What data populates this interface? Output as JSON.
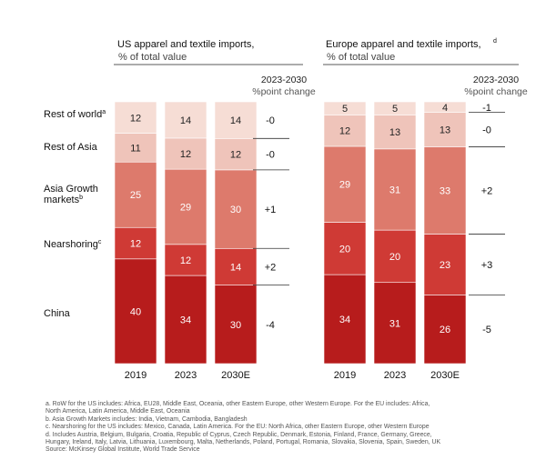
{
  "colors": {
    "china": "#b71c1c",
    "nearshoring": "#cf3a35",
    "asia_growth": "#dd7a6c",
    "rest_of_asia": "#efc4ba",
    "rest_of_world": "#f6ddd5",
    "text_on_dark": "#ffffff",
    "text_on_light": "#222222"
  },
  "chart_data": [
    {
      "type": "bar",
      "stacked": true,
      "title": "US apparel and textile imports,",
      "subtitle": "% of total value",
      "change_header": [
        "2023-2030",
        "%point change"
      ],
      "categories": [
        "2019",
        "2023",
        "2030E"
      ],
      "series": [
        {
          "name": "China",
          "values": [
            40,
            34,
            30
          ],
          "change": "-4"
        },
        {
          "name": "Nearshoring",
          "values": [
            12,
            12,
            14
          ],
          "change": "+2"
        },
        {
          "name": "Asia Growth markets",
          "values": [
            25,
            29,
            30
          ],
          "change": "+1"
        },
        {
          "name": "Rest of Asia",
          "values": [
            11,
            12,
            12
          ],
          "change": "-0"
        },
        {
          "name": "Rest of world",
          "values": [
            12,
            14,
            14
          ],
          "change": "-0"
        }
      ],
      "series_labels": [
        {
          "text": "China",
          "sup": ""
        },
        {
          "text": "Nearshoring",
          "sup": "c"
        },
        {
          "text": "Asia Growth markets",
          "sup": "b"
        },
        {
          "text": "Rest of Asia",
          "sup": ""
        },
        {
          "text": "Rest of world",
          "sup": "a"
        }
      ]
    },
    {
      "type": "bar",
      "stacked": true,
      "title": "Europe apparel and textile imports,",
      "title_sup": "d",
      "subtitle": "% of total value",
      "change_header": [
        "2023-2030",
        "%point change"
      ],
      "categories": [
        "2019",
        "2023",
        "2030E"
      ],
      "series": [
        {
          "name": "China",
          "values": [
            34,
            31,
            26
          ],
          "change": "-5"
        },
        {
          "name": "Nearshoring",
          "values": [
            20,
            20,
            23
          ],
          "change": "+3"
        },
        {
          "name": "Asia Growth markets",
          "values": [
            29,
            31,
            33
          ],
          "change": "+2"
        },
        {
          "name": "Rest of Asia",
          "values": [
            12,
            13,
            13
          ],
          "change": "-0"
        },
        {
          "name": "Rest of world",
          "values": [
            5,
            5,
            4
          ],
          "change": "-1"
        }
      ]
    }
  ],
  "footnotes": [
    "a. RoW for the US includes: Africa, EU28, Middle East, Oceania, other Eastern Europe, other Western Europe. For the EU includes: Africa,",
    "North America, Latin America, Middle East, Oceania",
    "b. Asia Growth Markets includes: India, Vietnam, Cambodia, Bangladesh",
    "c. Nearshoring for the US includes: Mexico, Canada, Latin America. For the EU: North Africa, other Eastern Europe, other Western Europe",
    "d. Includes Austria, Belgium, Bulgaria, Croatia, Republic of Cyprus, Czech Republic, Denmark, Estonia, Finland, France, Germany, Greece,",
    "Hungary, Ireland, Italy, Latvia, Lithuania, Luxembourg, Malta, Netherlands, Poland, Portugal, Romania, Slovakia, Slovenia, Spain, Sweden, UK",
    "Source: McKinsey Global Institute, World Trade Service"
  ]
}
